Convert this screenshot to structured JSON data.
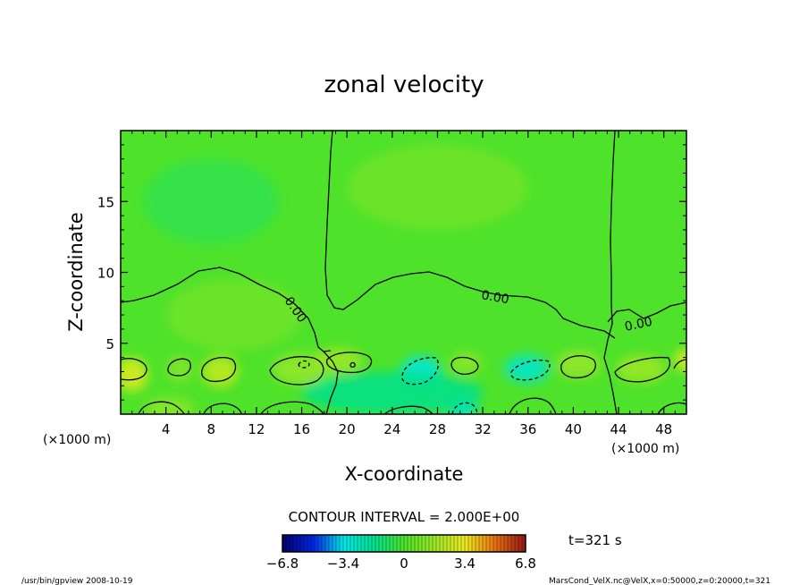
{
  "chart_data": {
    "type": "heatmap",
    "title": "zonal velocity",
    "xlabel": "X-coordinate",
    "ylabel": "Z-coordinate",
    "x_unit_left": "(×1000 m)",
    "x_unit_right": "(×1000 m)",
    "xlim": [
      0,
      50
    ],
    "ylim": [
      0,
      20
    ],
    "x_ticks": [
      4,
      8,
      12,
      16,
      20,
      24,
      28,
      32,
      36,
      40,
      44,
      48
    ],
    "y_ticks": [
      5,
      10,
      15
    ],
    "contour_label": "0.00",
    "contour_interval_text": "CONTOUR INTERVAL = 2.000E+00",
    "time_text": "t=321 s",
    "colorbar": {
      "min": -6.8,
      "max": 6.8,
      "tick_labels": [
        "−6.8",
        "−3.4",
        "0",
        "3.4",
        "6.8"
      ],
      "tick_values": [
        -6.8,
        -3.4,
        0,
        3.4,
        6.8
      ]
    },
    "anomalies": [
      {
        "x": 1.0,
        "z": 2.8,
        "rx": 1.4,
        "rz": 1.2,
        "value": 3.2
      },
      {
        "x": 5.2,
        "z": 3.2,
        "rx": 1.1,
        "rz": 1.0,
        "value": 1.2
      },
      {
        "x": 8.8,
        "z": 3.0,
        "rx": 1.6,
        "rz": 1.1,
        "value": 2.6
      },
      {
        "x": 4.3,
        "z": 0.4,
        "rx": 2.2,
        "rz": 0.8,
        "value": 1.4
      },
      {
        "x": 15.8,
        "z": 3.2,
        "rx": 2.4,
        "rz": 1.1,
        "value": 1.6
      },
      {
        "x": 19.2,
        "z": 3.8,
        "rx": 2.2,
        "rz": 0.9,
        "value": 1.8
      },
      {
        "x": 26.5,
        "z": 3.0,
        "rx": 1.8,
        "rz": 1.1,
        "value": -3.4
      },
      {
        "x": 30.2,
        "z": 0.4,
        "rx": 1.4,
        "rz": 0.8,
        "value": -2.8
      },
      {
        "x": 35.9,
        "z": 3.2,
        "rx": 2.0,
        "rz": 1.0,
        "value": -3.0
      },
      {
        "x": 30.5,
        "z": 3.6,
        "rx": 1.4,
        "rz": 0.8,
        "value": 1.4
      },
      {
        "x": 40.5,
        "z": 3.5,
        "rx": 2.0,
        "rz": 1.0,
        "value": 1.6
      },
      {
        "x": 46.0,
        "z": 3.2,
        "rx": 2.2,
        "rz": 1.0,
        "value": 1.8
      },
      {
        "x": 49.8,
        "z": 3.8,
        "rx": 0.8,
        "rz": 0.8,
        "value": 3.4
      },
      {
        "x": 10.0,
        "z": 7.0,
        "rx": 6.0,
        "rz": 2.5,
        "value": 0.8
      },
      {
        "x": 28.0,
        "z": 16.0,
        "rx": 8.0,
        "rz": 3.0,
        "value": 0.8
      },
      {
        "x": 8.0,
        "z": 15.0,
        "rx": 6.0,
        "rz": 3.0,
        "value": -0.6
      },
      {
        "x": 24.0,
        "z": 1.5,
        "rx": 8.0,
        "rz": 1.5,
        "value": -1.6
      }
    ]
  },
  "footer": {
    "left": "/usr/bin/gpview   2008-10-19",
    "right": "MarsCond_VelX.nc@VelX,x=0:50000,z=0:20000,t=321"
  }
}
